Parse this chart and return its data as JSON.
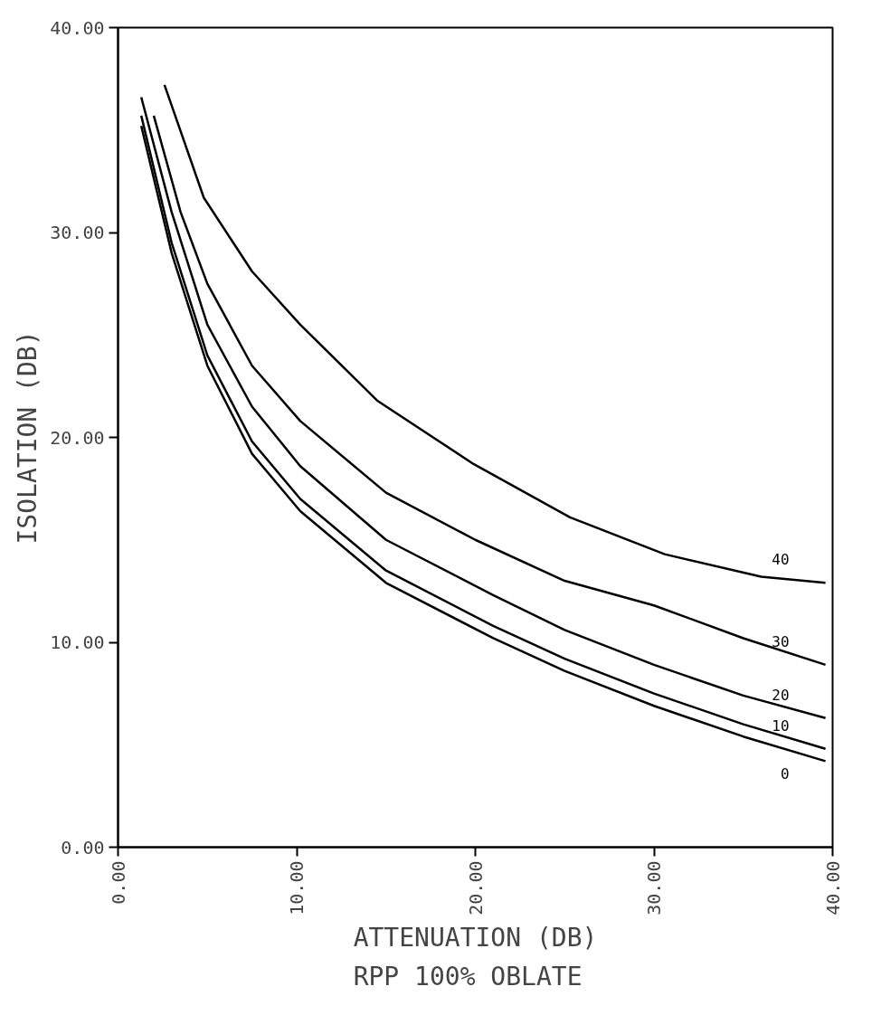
{
  "chart_data": {
    "type": "line",
    "title": "RPP  100% OBLATE",
    "xlabel": "ATTENUATION (DB)",
    "ylabel": "ISOLATION (DB)",
    "xlim": [
      0,
      40
    ],
    "ylim": [
      0,
      40
    ],
    "xticks": [
      {
        "value": 0,
        "label": "0.00"
      },
      {
        "value": 10,
        "label": "10.00"
      },
      {
        "value": 20,
        "label": "20.00"
      },
      {
        "value": 30,
        "label": "30.00"
      },
      {
        "value": 40,
        "label": "40.00"
      }
    ],
    "yticks": [
      {
        "value": 0,
        "label": "0.00"
      },
      {
        "value": 10,
        "label": "10.00"
      },
      {
        "value": 20,
        "label": "20.00"
      },
      {
        "value": 30,
        "label": "30.00"
      },
      {
        "value": 40,
        "label": "40.00"
      }
    ],
    "grid": false,
    "series": [
      {
        "name": "40",
        "color": "#000000",
        "x": [
          2.6,
          4.8,
          7.5,
          10.2,
          14.5,
          19.9,
          25.3,
          30.6,
          36,
          39.6
        ],
        "values": [
          37.2,
          31.7,
          28.1,
          25.5,
          21.8,
          18.7,
          16.1,
          14.3,
          13.2,
          12.9
        ]
      },
      {
        "name": "30",
        "color": "#000000",
        "x": [
          2.0,
          3.5,
          5,
          7.5,
          10.2,
          15,
          20,
          25,
          30,
          35,
          39.6
        ],
        "values": [
          35.7,
          31,
          27.5,
          23.5,
          20.8,
          17.3,
          15.0,
          13,
          11.8,
          10.2,
          8.9
        ]
      },
      {
        "name": "20",
        "color": "#000000",
        "x": [
          1.3,
          3,
          5,
          7.5,
          10.2,
          15,
          21,
          25,
          30,
          35,
          39.6
        ],
        "values": [
          36.6,
          31,
          25.5,
          21.5,
          18.6,
          15,
          12.3,
          10.6,
          8.9,
          7.4,
          6.3
        ]
      },
      {
        "name": "10",
        "color": "#000000",
        "x": [
          1.3,
          3,
          5,
          7.5,
          10.2,
          15,
          21,
          25,
          30,
          35,
          39.6
        ],
        "values": [
          35.7,
          29.5,
          24,
          19.8,
          17,
          13.5,
          10.8,
          9.2,
          7.5,
          6,
          4.8
        ]
      },
      {
        "name": "0",
        "color": "#000000",
        "x": [
          1.3,
          3,
          5,
          7.5,
          10.2,
          15,
          21,
          25,
          30,
          35,
          39.6
        ],
        "values": [
          35.2,
          29,
          23.5,
          19.2,
          16.4,
          12.9,
          10.2,
          8.6,
          6.9,
          5.4,
          4.2
        ]
      }
    ]
  }
}
